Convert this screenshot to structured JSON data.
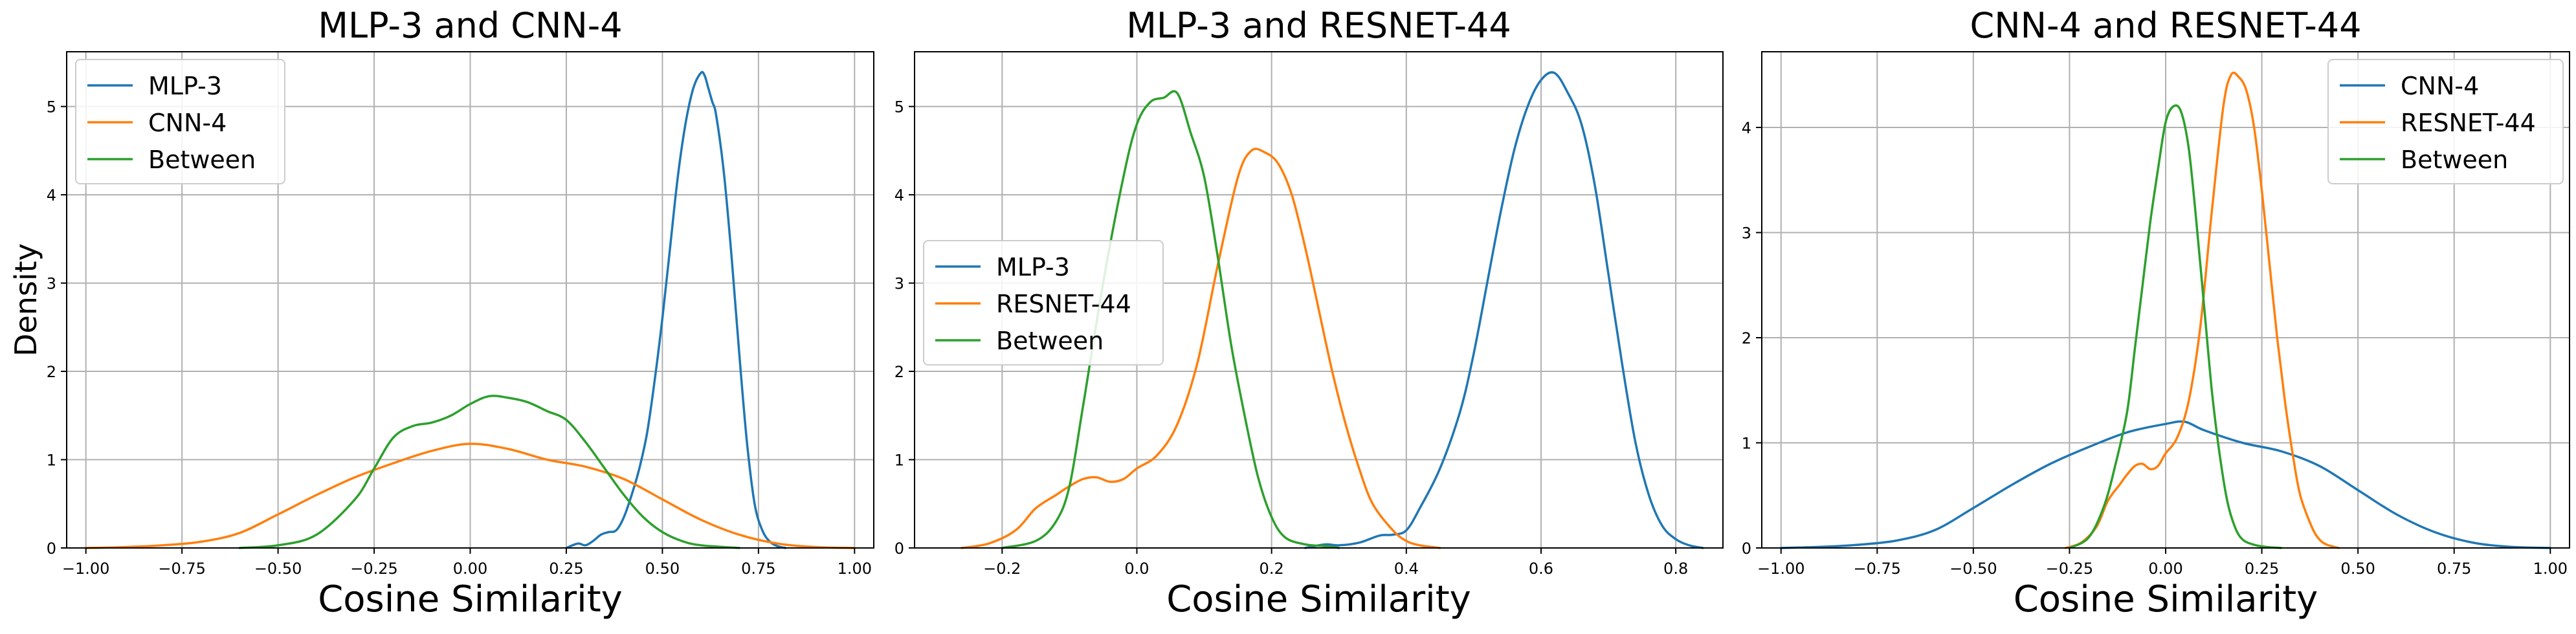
{
  "colors": {
    "c0": "#1f77b4",
    "c1": "#ff7f0e",
    "c2": "#2ca02c",
    "grid": "#b0b0b0",
    "axis": "#000000"
  },
  "chart_data": [
    {
      "type": "line",
      "title": "MLP-3 and CNN-4",
      "xlabel": "Cosine Similarity",
      "ylabel": "Density",
      "xlim": [
        -1.05,
        1.05
      ],
      "ylim": [
        0,
        5.62
      ],
      "xticks": [
        -1.0,
        -0.75,
        -0.5,
        -0.25,
        0.0,
        0.25,
        0.5,
        0.75,
        1.0
      ],
      "xtick_labels": [
        "−1.00",
        "−0.75",
        "−0.50",
        "−0.25",
        "0.00",
        "0.25",
        "0.50",
        "0.75",
        "1.00"
      ],
      "yticks": [
        0,
        1,
        2,
        3,
        4,
        5
      ],
      "ytick_labels": [
        "0",
        "1",
        "2",
        "3",
        "4",
        "5"
      ],
      "grid": true,
      "legend_position": "upper-left",
      "series": [
        {
          "name": "MLP-3",
          "color": "#1f77b4",
          "x": [
            0.25,
            0.28,
            0.3,
            0.32,
            0.34,
            0.36,
            0.38,
            0.4,
            0.42,
            0.44,
            0.46,
            0.48,
            0.5,
            0.52,
            0.54,
            0.56,
            0.58,
            0.6,
            0.61,
            0.62,
            0.63,
            0.64,
            0.66,
            0.68,
            0.7,
            0.72,
            0.74,
            0.76,
            0.78,
            0.8,
            0.82
          ],
          "y": [
            0,
            0.05,
            0.03,
            0.08,
            0.15,
            0.18,
            0.2,
            0.35,
            0.6,
            0.9,
            1.3,
            1.9,
            2.6,
            3.4,
            4.2,
            4.8,
            5.2,
            5.38,
            5.35,
            5.2,
            5.05,
            4.9,
            4.25,
            3.3,
            2.2,
            1.2,
            0.5,
            0.2,
            0.07,
            0.02,
            0
          ]
        },
        {
          "name": "CNN-4",
          "color": "#ff7f0e",
          "x": [
            -1.0,
            -0.9,
            -0.8,
            -0.7,
            -0.6,
            -0.5,
            -0.4,
            -0.3,
            -0.2,
            -0.1,
            0.0,
            0.1,
            0.2,
            0.3,
            0.4,
            0.5,
            0.6,
            0.7,
            0.8,
            0.9,
            1.0
          ],
          "y": [
            0.0,
            0.01,
            0.03,
            0.07,
            0.17,
            0.38,
            0.6,
            0.8,
            0.96,
            1.1,
            1.18,
            1.12,
            1.0,
            0.92,
            0.78,
            0.55,
            0.32,
            0.15,
            0.05,
            0.01,
            0.0
          ]
        },
        {
          "name": "Between",
          "color": "#2ca02c",
          "x": [
            -0.6,
            -0.5,
            -0.4,
            -0.3,
            -0.25,
            -0.2,
            -0.15,
            -0.1,
            -0.05,
            0.0,
            0.05,
            0.1,
            0.15,
            0.2,
            0.25,
            0.3,
            0.35,
            0.4,
            0.45,
            0.5,
            0.55,
            0.6,
            0.7
          ],
          "y": [
            0.0,
            0.03,
            0.15,
            0.55,
            0.9,
            1.25,
            1.38,
            1.42,
            1.5,
            1.63,
            1.72,
            1.7,
            1.65,
            1.55,
            1.45,
            1.2,
            0.9,
            0.6,
            0.35,
            0.18,
            0.08,
            0.03,
            0.0
          ]
        }
      ]
    },
    {
      "type": "line",
      "title": "MLP-3 and RESNET-44",
      "xlabel": "Cosine Similarity",
      "ylabel": "",
      "xlim": [
        -0.33,
        0.87
      ],
      "ylim": [
        0,
        5.62
      ],
      "xticks": [
        -0.2,
        0.0,
        0.2,
        0.4,
        0.6,
        0.8
      ],
      "xtick_labels": [
        "−0.2",
        "0.0",
        "0.2",
        "0.4",
        "0.6",
        "0.8"
      ],
      "yticks": [
        0,
        1,
        2,
        3,
        4,
        5
      ],
      "ytick_labels": [
        "0",
        "1",
        "2",
        "3",
        "4",
        "5"
      ],
      "grid": true,
      "legend_position": "center-left",
      "series": [
        {
          "name": "MLP-3",
          "color": "#1f77b4",
          "x": [
            0.25,
            0.28,
            0.3,
            0.33,
            0.36,
            0.38,
            0.4,
            0.42,
            0.45,
            0.48,
            0.5,
            0.52,
            0.54,
            0.56,
            0.58,
            0.6,
            0.62,
            0.64,
            0.66,
            0.68,
            0.7,
            0.72,
            0.74,
            0.76,
            0.78,
            0.8,
            0.82,
            0.84
          ],
          "y": [
            0.0,
            0.04,
            0.03,
            0.06,
            0.14,
            0.15,
            0.2,
            0.45,
            0.9,
            1.55,
            2.2,
            3.0,
            3.8,
            4.5,
            5.0,
            5.3,
            5.38,
            5.15,
            4.8,
            4.1,
            3.1,
            2.1,
            1.2,
            0.6,
            0.25,
            0.1,
            0.03,
            0.0
          ]
        },
        {
          "name": "RESNET-44",
          "color": "#ff7f0e",
          "x": [
            -0.26,
            -0.22,
            -0.18,
            -0.15,
            -0.12,
            -0.1,
            -0.08,
            -0.06,
            -0.04,
            -0.02,
            0.0,
            0.03,
            0.06,
            0.09,
            0.12,
            0.15,
            0.17,
            0.19,
            0.21,
            0.23,
            0.25,
            0.27,
            0.29,
            0.31,
            0.33,
            0.35,
            0.38,
            0.4,
            0.42,
            0.45
          ],
          "y": [
            0.0,
            0.05,
            0.2,
            0.45,
            0.6,
            0.7,
            0.78,
            0.8,
            0.75,
            0.78,
            0.9,
            1.05,
            1.4,
            2.1,
            3.2,
            4.2,
            4.5,
            4.48,
            4.35,
            4.0,
            3.4,
            2.7,
            2.0,
            1.4,
            0.9,
            0.5,
            0.2,
            0.08,
            0.03,
            0.0
          ]
        },
        {
          "name": "Between",
          "color": "#2ca02c",
          "x": [
            -0.2,
            -0.15,
            -0.12,
            -0.1,
            -0.08,
            -0.05,
            -0.02,
            0.0,
            0.02,
            0.04,
            0.06,
            0.08,
            0.1,
            0.12,
            0.14,
            0.16,
            0.18,
            0.2,
            0.22,
            0.25,
            0.28,
            0.3
          ],
          "y": [
            0.0,
            0.08,
            0.3,
            0.7,
            1.6,
            3.0,
            4.2,
            4.8,
            5.05,
            5.1,
            5.15,
            4.7,
            4.2,
            3.3,
            2.3,
            1.5,
            0.8,
            0.35,
            0.12,
            0.04,
            0.02,
            0.0
          ]
        }
      ]
    },
    {
      "type": "line",
      "title": "CNN-4 and RESNET-44",
      "xlabel": "Cosine Similarity",
      "ylabel": "",
      "xlim": [
        -1.05,
        1.05
      ],
      "ylim": [
        0,
        4.72
      ],
      "xticks": [
        -1.0,
        -0.75,
        -0.5,
        -0.25,
        0.0,
        0.25,
        0.5,
        0.75,
        1.0
      ],
      "xtick_labels": [
        "−1.00",
        "−0.75",
        "−0.50",
        "−0.25",
        "0.00",
        "0.25",
        "0.50",
        "0.75",
        "1.00"
      ],
      "yticks": [
        0,
        1,
        2,
        3,
        4
      ],
      "ytick_labels": [
        "0",
        "1",
        "2",
        "3",
        "4"
      ],
      "grid": true,
      "legend_position": "upper-right",
      "series": [
        {
          "name": "CNN-4",
          "color": "#1f77b4",
          "x": [
            -1.0,
            -0.9,
            -0.8,
            -0.7,
            -0.6,
            -0.5,
            -0.4,
            -0.3,
            -0.2,
            -0.1,
            0.0,
            0.05,
            0.1,
            0.2,
            0.3,
            0.4,
            0.5,
            0.6,
            0.7,
            0.8,
            0.9,
            1.0
          ],
          "y": [
            0.0,
            0.01,
            0.03,
            0.07,
            0.17,
            0.38,
            0.6,
            0.8,
            0.96,
            1.1,
            1.18,
            1.2,
            1.12,
            1.0,
            0.92,
            0.78,
            0.55,
            0.32,
            0.15,
            0.05,
            0.01,
            0.0
          ]
        },
        {
          "name": "RESNET-44",
          "color": "#ff7f0e",
          "x": [
            -0.26,
            -0.22,
            -0.18,
            -0.15,
            -0.12,
            -0.1,
            -0.08,
            -0.06,
            -0.04,
            -0.02,
            0.0,
            0.03,
            0.06,
            0.09,
            0.12,
            0.15,
            0.17,
            0.19,
            0.21,
            0.23,
            0.25,
            0.27,
            0.29,
            0.31,
            0.33,
            0.35,
            0.38,
            0.4,
            0.42,
            0.45
          ],
          "y": [
            0.0,
            0.05,
            0.2,
            0.45,
            0.6,
            0.7,
            0.78,
            0.8,
            0.75,
            0.78,
            0.9,
            1.05,
            1.4,
            2.1,
            3.2,
            4.2,
            4.5,
            4.48,
            4.35,
            4.0,
            3.4,
            2.7,
            2.0,
            1.4,
            0.9,
            0.5,
            0.2,
            0.08,
            0.03,
            0.0
          ]
        },
        {
          "name": "Between",
          "color": "#2ca02c",
          "x": [
            -0.25,
            -0.2,
            -0.16,
            -0.13,
            -0.1,
            -0.08,
            -0.06,
            -0.04,
            -0.02,
            0.0,
            0.02,
            0.04,
            0.06,
            0.08,
            0.1,
            0.12,
            0.14,
            0.16,
            0.18,
            0.2,
            0.23,
            0.26,
            0.3
          ],
          "y": [
            0.0,
            0.1,
            0.4,
            0.8,
            1.3,
            1.9,
            2.5,
            3.1,
            3.6,
            4.05,
            4.2,
            4.15,
            3.8,
            3.1,
            2.3,
            1.5,
            0.9,
            0.45,
            0.2,
            0.08,
            0.03,
            0.01,
            0.0
          ]
        }
      ]
    }
  ]
}
